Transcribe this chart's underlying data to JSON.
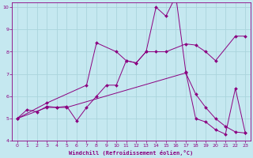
{
  "xlabel": "Windchill (Refroidissement éolien,°C)",
  "xlim": [
    -0.5,
    23.5
  ],
  "ylim": [
    4,
    10.2
  ],
  "xticks": [
    0,
    1,
    2,
    3,
    4,
    5,
    6,
    7,
    8,
    9,
    10,
    11,
    12,
    13,
    14,
    15,
    16,
    17,
    18,
    19,
    20,
    21,
    22,
    23
  ],
  "yticks": [
    4,
    5,
    6,
    7,
    8,
    9,
    10
  ],
  "bg_color": "#c5e8f0",
  "line_color": "#8b0080",
  "grid_color": "#aad4dc",
  "lines": [
    {
      "x": [
        0,
        1,
        2,
        3,
        4,
        5,
        6,
        7,
        8,
        9,
        10,
        11,
        12,
        13,
        14,
        15,
        16,
        17,
        18,
        19,
        20,
        21,
        22,
        23
      ],
      "y": [
        5.0,
        5.4,
        5.3,
        5.55,
        5.5,
        5.55,
        4.9,
        5.5,
        6.0,
        6.5,
        6.5,
        7.6,
        7.5,
        8.0,
        10.0,
        9.6,
        10.5,
        7.1,
        5.0,
        4.85,
        4.5,
        4.3,
        6.35,
        4.35
      ]
    },
    {
      "x": [
        0,
        3,
        7,
        8,
        10,
        11,
        12,
        13,
        14,
        15,
        17,
        18,
        19,
        20,
        22,
        23
      ],
      "y": [
        5.0,
        5.7,
        6.5,
        8.4,
        8.0,
        7.6,
        7.5,
        8.0,
        8.0,
        8.0,
        8.35,
        8.3,
        8.0,
        7.6,
        8.7,
        8.7
      ]
    },
    {
      "x": [
        0,
        3,
        4,
        5,
        17,
        18,
        19,
        20,
        21,
        22,
        23
      ],
      "y": [
        5.0,
        5.5,
        5.5,
        5.5,
        7.05,
        6.1,
        5.5,
        5.0,
        4.65,
        4.4,
        4.35
      ]
    }
  ]
}
